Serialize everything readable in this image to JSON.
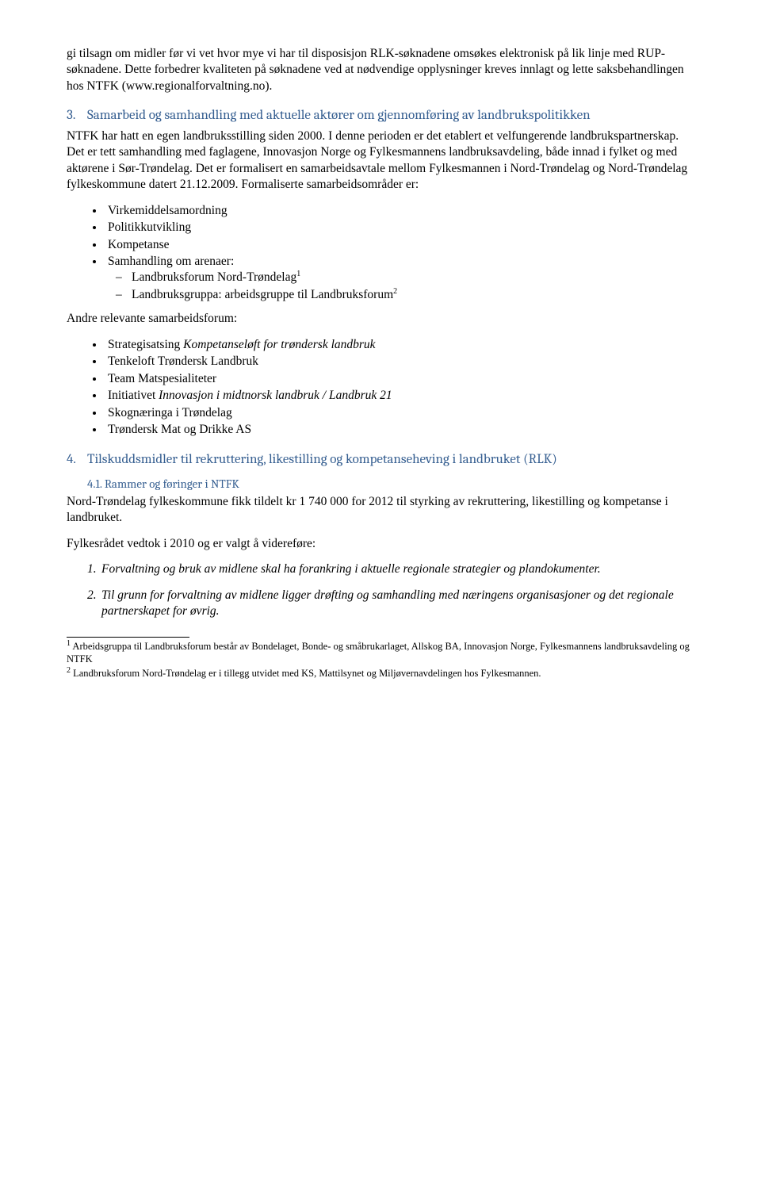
{
  "intro": "gi tilsagn om midler før vi vet hvor mye vi har til disposisjon RLK-søknadene omsøkes elektronisk på lik linje med RUP-søknadene. Dette forbedrer kvaliteten på søknadene ved at nødvendige opplysninger kreves innlagt og lette saksbehandlingen hos NTFK (www.regionalforvaltning.no).",
  "h3": {
    "num": "3.",
    "title": "Samarbeid og samhandling med aktuelle aktører om gjennomføring av landbrukspolitikken"
  },
  "p3": "NTFK har hatt en egen landbruksstilling siden 2000. I denne perioden er det etablert et velfungerende landbrukspartnerskap. Det er tett samhandling med faglagene, Innovasjon Norge og Fylkesmannens landbruksavdeling, både innad i fylket og med aktørene i Sør-Trøndelag. Det er formalisert en samarbeidsavtale mellom Fylkesmannen i Nord-Trøndelag og Nord-Trøndelag fylkeskommune datert 21.12.2009. Formaliserte samarbeidsområder er:",
  "list1": [
    "Virkemiddelsamordning",
    "Politikkutvikling",
    "Kompetanse",
    "Samhandling om arenaer:"
  ],
  "list1sub": [
    {
      "text": "Landbruksforum Nord-Trøndelag",
      "sup": "1"
    },
    {
      "text": "Landbruksgruppa: arbeidsgruppe til Landbruksforum",
      "sup": "2"
    }
  ],
  "p_andre": "Andre relevante samarbeidsforum:",
  "list2": [
    {
      "pre": "Strategisatsing ",
      "ital": "Kompetanseløft for trøndersk landbruk"
    },
    {
      "pre": "Tenkeloft Trøndersk Landbruk"
    },
    {
      "pre": "Team Matspesialiteter"
    },
    {
      "pre": "Initiativet ",
      "ital": "Innovasjon i midtnorsk landbruk / Landbruk 21"
    },
    {
      "pre": "Skognæringa i Trøndelag"
    },
    {
      "pre": "Trøndersk Mat og Drikke AS"
    }
  ],
  "h4": {
    "num": "4.",
    "title": "Tilskuddsmidler til rekruttering, likestilling og kompetanseheving i landbruket (RLK)"
  },
  "h41": "4.1. Rammer og føringer i NTFK",
  "p41": "Nord-Trøndelag fylkeskommune fikk tildelt kr 1 740 000 for 2012 til styrking av rekruttering, likestilling og kompetanse i landbruket.",
  "p_vedtok": "Fylkesrådet vedtok i 2010 og er valgt å videreføre:",
  "numlist": [
    {
      "n": "1.",
      "text": "Forvaltning og bruk av midlene skal ha forankring i aktuelle regionale strategier og plandokumenter."
    },
    {
      "n": "2.",
      "text": "Til grunn for forvaltning av midlene ligger drøfting og samhandling med næringens organisasjoner og det regionale partnerskapet for øvrig."
    }
  ],
  "fn1": {
    "sup": "1",
    "text": " Arbeidsgruppa til Landbruksforum består av Bondelaget, Bonde- og småbrukarlaget, Allskog BA, Innovasjon Norge, Fylkesmannens landbruksavdeling og NTFK"
  },
  "fn2": {
    "sup": "2",
    "text": " Landbruksforum Nord-Trøndelag er i tillegg utvidet med KS, Mattilsynet og Miljøvernavdelingen hos Fylkesmannen."
  }
}
